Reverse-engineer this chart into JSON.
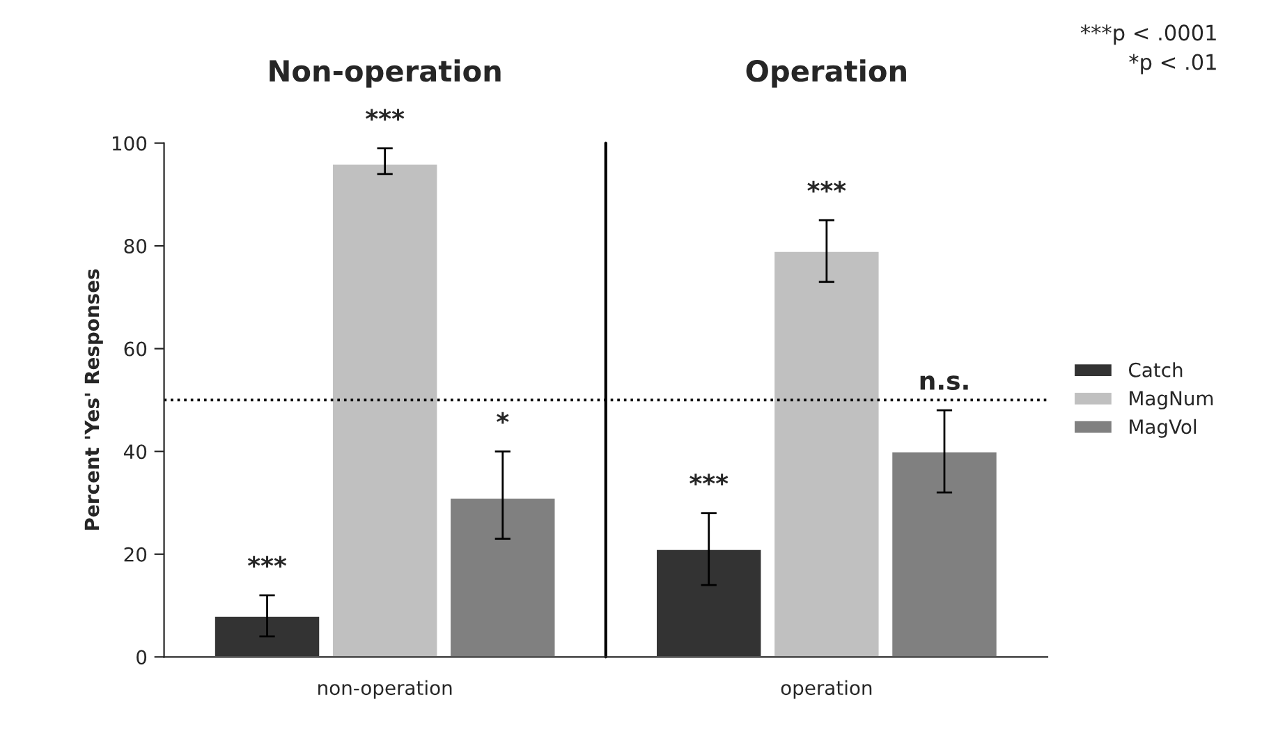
{
  "chart_data": {
    "type": "bar",
    "ylabel": "Percent 'Yes' Responses",
    "categories": [
      "non-operation",
      "operation"
    ],
    "series": [
      {
        "name": "Catch",
        "color": "#333333",
        "values": [
          8,
          21
        ],
        "errors": [
          [
            4,
            12
          ],
          [
            14,
            28
          ]
        ],
        "value_labels": [
          "***",
          "***"
        ]
      },
      {
        "name": "MagNum",
        "color": "#c0c0c0",
        "values": [
          96,
          79
        ],
        "errors": [
          [
            94,
            99
          ],
          [
            73,
            85
          ]
        ],
        "value_labels": [
          "***",
          "***"
        ]
      },
      {
        "name": "MagVol",
        "color": "#808080",
        "values": [
          31,
          40
        ],
        "errors": [
          [
            23,
            40
          ],
          [
            32,
            48
          ]
        ],
        "value_labels": [
          "*",
          "n.s."
        ]
      }
    ],
    "ylim": [
      0,
      100
    ],
    "yticks": [
      0,
      20,
      40,
      60,
      80,
      100
    ],
    "ref_lines": [
      {
        "axis": "y",
        "value": 50,
        "line_style": "dotted",
        "color": "#000000"
      }
    ],
    "annotations": [
      "Non-operation",
      "Operation",
      "***p < .0001",
      "*p < .01"
    ],
    "legend": "right",
    "grid": false
  }
}
